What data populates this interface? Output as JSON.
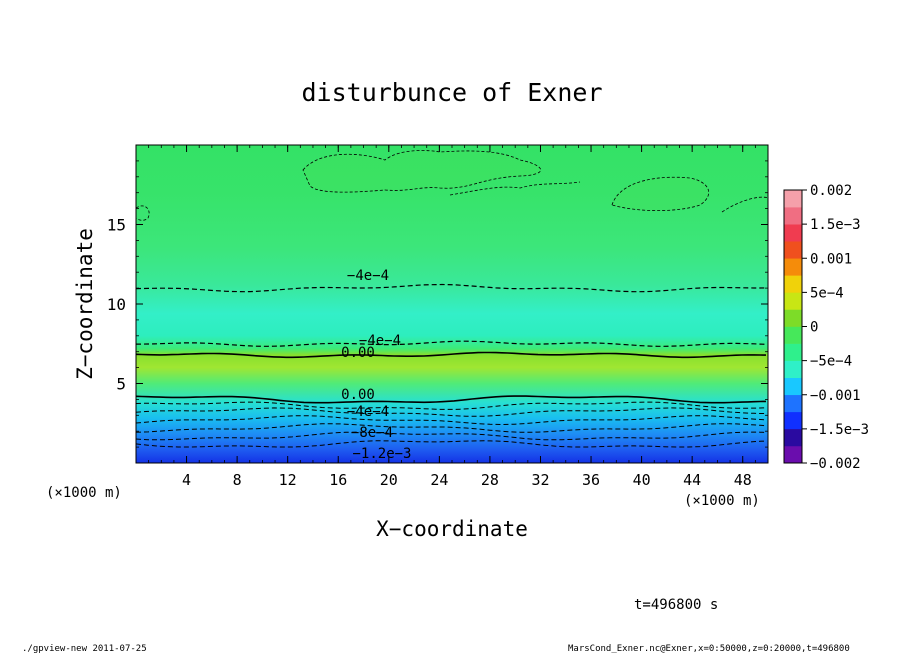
{
  "chart_data": {
    "type": "contour",
    "title": "disturbunce of Exner",
    "xlabel": "X−coordinate",
    "ylabel": "Z−coordinate",
    "x_unit_left": "(×1000 m)",
    "x_unit_right": "(×1000 m)",
    "xlim": [
      0,
      50
    ],
    "ylim": [
      0,
      20
    ],
    "x_ticks": [
      "4",
      "8",
      "12",
      "16",
      "20",
      "24",
      "28",
      "32",
      "36",
      "40",
      "44",
      "48"
    ],
    "y_ticks": [
      "5",
      "10",
      "15"
    ],
    "contour_labels": [
      "−4e−4",
      "−4e−4",
      "0.00",
      "0.00",
      "−4e−4",
      "−8e−4",
      "−1.2e−3"
    ],
    "contour_levels": [
      {
        "z": 1.2,
        "value": -0.0012,
        "style": "dashed"
      },
      {
        "z": 1.7,
        "value": -0.001,
        "style": "dashed"
      },
      {
        "z": 2.2,
        "value": -0.0008,
        "style": "dashed"
      },
      {
        "z": 2.7,
        "value": -0.0006,
        "style": "dashed"
      },
      {
        "z": 3.2,
        "value": -0.0004,
        "style": "dashed"
      },
      {
        "z": 3.6,
        "value": -0.0002,
        "style": "dashed"
      },
      {
        "z": 4.0,
        "value": 0.0,
        "style": "solid"
      },
      {
        "z": 6.8,
        "value": 0.0,
        "style": "solid"
      },
      {
        "z": 7.5,
        "value": -0.0004,
        "style": "dashed"
      },
      {
        "z": 11.0,
        "value": -0.0004,
        "style": "dashed"
      }
    ],
    "colorbar": {
      "tick_labels": [
        "0.002",
        "1.5e−3",
        "0.001",
        "5e−4",
        "0",
        "−5e−4",
        "−0.001",
        "−1.5e−3",
        "−0.002"
      ],
      "range": [
        -0.002,
        0.002
      ],
      "colors": [
        "#6a0dad",
        "#2a0aa0",
        "#1030ff",
        "#1e73ff",
        "#19c8ff",
        "#2ff0c8",
        "#2ff08c",
        "#46e85a",
        "#7ddc28",
        "#c8e614",
        "#f0d20a",
        "#f58c0a",
        "#f0501e",
        "#f03c50",
        "#f06e82",
        "#f5a0aa"
      ]
    },
    "time_label": "t=496800 s",
    "footer_left": "./gpview-new  2011-07-25",
    "footer_right": "MarsCond_Exner.nc@Exner,x=0:50000,z=0:20000,t=496800"
  }
}
